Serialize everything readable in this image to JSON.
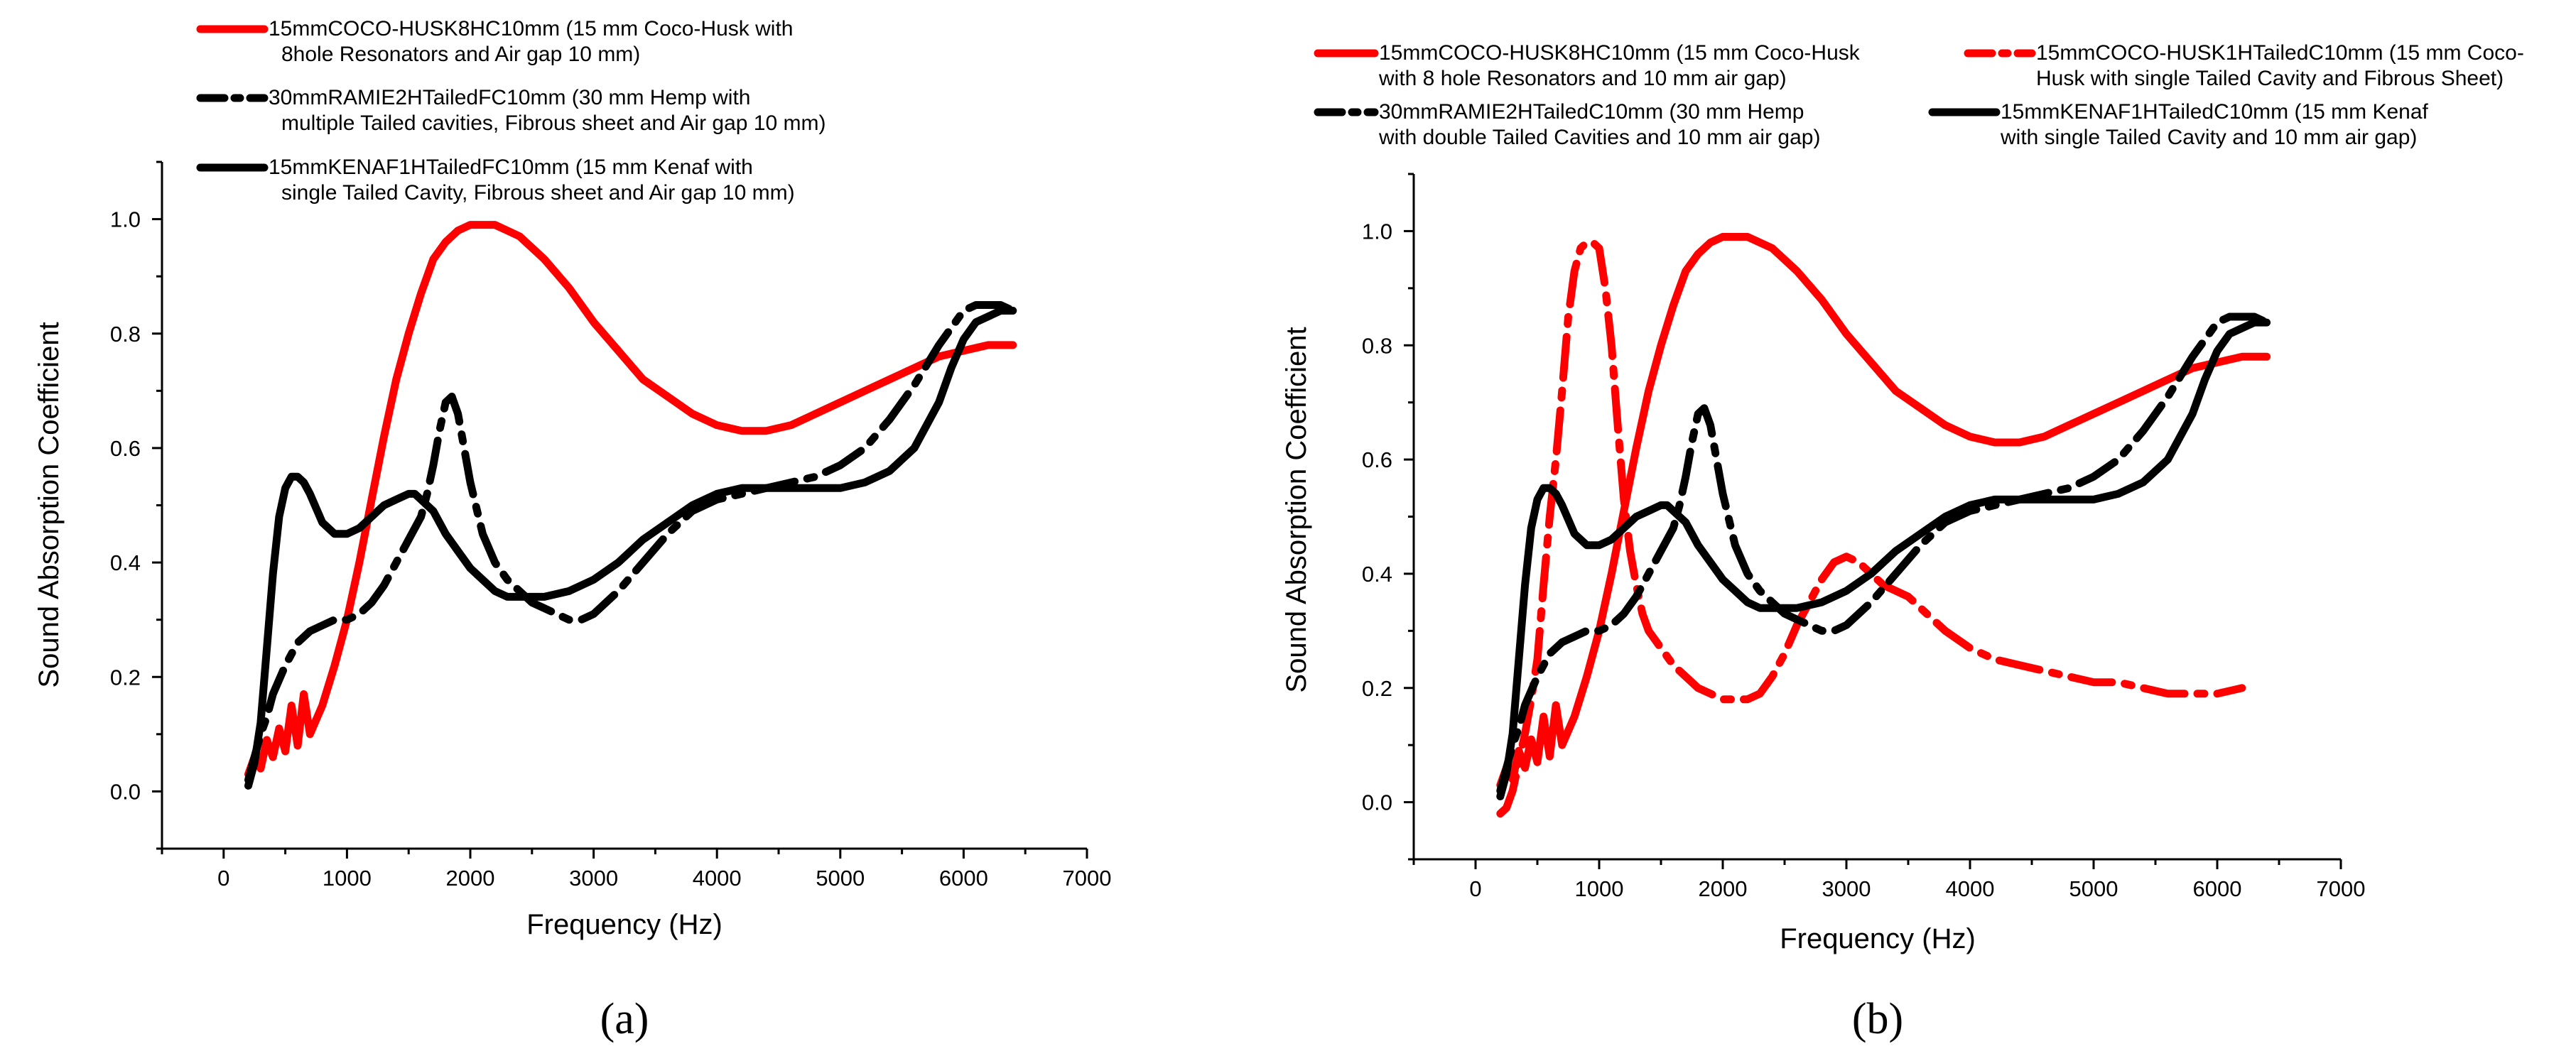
{
  "chart_data": [
    {
      "type": "line",
      "panel_label": "(a)",
      "xlabel": "Frequency (Hz)",
      "ylabel": "Sound Absorption Coefficient",
      "xlim": [
        -500,
        7000
      ],
      "ylim": [
        -0.1,
        1.1
      ],
      "xticks": [
        "0",
        "1000",
        "2000",
        "3000",
        "4000",
        "5000",
        "6000",
        "7000"
      ],
      "yticks": [
        "0.0",
        "0.2",
        "0.4",
        "0.6",
        "0.8",
        "1.0"
      ],
      "series": [
        {
          "name": "15mmCOCO-HUSK8HC10mm",
          "legend": [
            "15mmCOCO-HUSK8HC10mm (15 mm Coco-Husk with",
            "8hole Resonators and Air gap 10 mm)"
          ],
          "color": "#ff0000",
          "dash": "solid",
          "x": [
            200,
            250,
            300,
            350,
            400,
            450,
            500,
            550,
            600,
            650,
            700,
            800,
            900,
            1000,
            1100,
            1200,
            1300,
            1400,
            1500,
            1600,
            1700,
            1800,
            1900,
            2000,
            2100,
            2200,
            2300,
            2400,
            2600,
            2800,
            3000,
            3200,
            3400,
            3600,
            3800,
            4000,
            4200,
            4400,
            4600,
            4800,
            5000,
            5200,
            5400,
            5600,
            5800,
            6000,
            6200,
            6400
          ],
          "y": [
            0.03,
            0.06,
            0.04,
            0.09,
            0.06,
            0.11,
            0.07,
            0.15,
            0.08,
            0.17,
            0.1,
            0.15,
            0.22,
            0.3,
            0.4,
            0.51,
            0.62,
            0.72,
            0.8,
            0.87,
            0.93,
            0.96,
            0.98,
            0.99,
            0.99,
            0.99,
            0.98,
            0.97,
            0.93,
            0.88,
            0.82,
            0.77,
            0.72,
            0.69,
            0.66,
            0.64,
            0.63,
            0.63,
            0.64,
            0.66,
            0.68,
            0.7,
            0.72,
            0.74,
            0.76,
            0.77,
            0.78,
            0.78
          ]
        },
        {
          "name": "30mmRAMIE2HTailedFC10mm",
          "legend": [
            "30mmRAMIE2HTailedFC10mm (30 mm Hemp with",
            "multiple Tailed cavities, Fibrous sheet and Air gap 10 mm)"
          ],
          "color": "#000000",
          "dash": "dashdot",
          "x": [
            200,
            250,
            300,
            350,
            400,
            500,
            600,
            700,
            800,
            900,
            1000,
            1100,
            1200,
            1300,
            1400,
            1500,
            1600,
            1650,
            1700,
            1750,
            1800,
            1850,
            1900,
            1950,
            2000,
            2100,
            2200,
            2300,
            2400,
            2500,
            2600,
            2700,
            2800,
            2900,
            3000,
            3200,
            3400,
            3600,
            3800,
            4000,
            4200,
            4400,
            4600,
            4800,
            5000,
            5200,
            5400,
            5600,
            5800,
            5900,
            6000,
            6100,
            6200,
            6300,
            6400
          ],
          "y": [
            0.02,
            0.06,
            0.1,
            0.13,
            0.17,
            0.22,
            0.26,
            0.28,
            0.29,
            0.3,
            0.3,
            0.31,
            0.33,
            0.36,
            0.4,
            0.44,
            0.48,
            0.52,
            0.57,
            0.63,
            0.68,
            0.69,
            0.66,
            0.6,
            0.54,
            0.45,
            0.4,
            0.37,
            0.35,
            0.33,
            0.32,
            0.31,
            0.3,
            0.3,
            0.31,
            0.35,
            0.4,
            0.45,
            0.49,
            0.51,
            0.52,
            0.53,
            0.54,
            0.55,
            0.57,
            0.6,
            0.65,
            0.71,
            0.78,
            0.81,
            0.84,
            0.85,
            0.85,
            0.85,
            0.84
          ]
        },
        {
          "name": "15mmKENAF1HTailedFC10mm",
          "legend": [
            "15mmKENAF1HTailedFC10mm (15 mm Kenaf with",
            "single Tailed Cavity, Fibrous sheet and Air gap 10 mm)"
          ],
          "color": "#000000",
          "dash": "solid",
          "x": [
            200,
            250,
            300,
            350,
            400,
            450,
            500,
            550,
            600,
            650,
            700,
            800,
            900,
            1000,
            1100,
            1200,
            1300,
            1400,
            1500,
            1550,
            1600,
            1700,
            1800,
            1900,
            2000,
            2100,
            2200,
            2300,
            2400,
            2500,
            2600,
            2800,
            3000,
            3200,
            3400,
            3600,
            3800,
            4000,
            4200,
            4400,
            4600,
            4800,
            5000,
            5200,
            5400,
            5600,
            5800,
            5900,
            6000,
            6100,
            6200,
            6300,
            6400
          ],
          "y": [
            0.01,
            0.05,
            0.12,
            0.25,
            0.38,
            0.48,
            0.53,
            0.55,
            0.55,
            0.54,
            0.52,
            0.47,
            0.45,
            0.45,
            0.46,
            0.48,
            0.5,
            0.51,
            0.52,
            0.52,
            0.51,
            0.49,
            0.45,
            0.42,
            0.39,
            0.37,
            0.35,
            0.34,
            0.34,
            0.34,
            0.34,
            0.35,
            0.37,
            0.4,
            0.44,
            0.47,
            0.5,
            0.52,
            0.53,
            0.53,
            0.53,
            0.53,
            0.53,
            0.54,
            0.56,
            0.6,
            0.68,
            0.74,
            0.79,
            0.82,
            0.83,
            0.84,
            0.84
          ]
        }
      ]
    },
    {
      "type": "line",
      "panel_label": "(b)",
      "xlabel": "Frequency (Hz)",
      "ylabel": "Sound Absorption Coefficient",
      "xlim": [
        -500,
        7000
      ],
      "ylim": [
        -0.1,
        1.1
      ],
      "xticks": [
        "0",
        "1000",
        "2000",
        "3000",
        "4000",
        "5000",
        "6000",
        "7000"
      ],
      "yticks": [
        "0.0",
        "0.2",
        "0.4",
        "0.6",
        "0.8",
        "1.0"
      ],
      "series": [
        {
          "name": "15mmCOCO-HUSK8HC10mm",
          "legend": [
            "15mmCOCO-HUSK8HC10mm (15 mm Coco-Husk",
            "with 8 hole Resonators and 10 mm air gap)"
          ],
          "color": "#ff0000",
          "dash": "solid",
          "x": [
            200,
            250,
            300,
            350,
            400,
            450,
            500,
            550,
            600,
            650,
            700,
            800,
            900,
            1000,
            1100,
            1200,
            1300,
            1400,
            1500,
            1600,
            1700,
            1800,
            1900,
            2000,
            2100,
            2200,
            2300,
            2400,
            2600,
            2800,
            3000,
            3200,
            3400,
            3600,
            3800,
            4000,
            4200,
            4400,
            4600,
            4800,
            5000,
            5200,
            5400,
            5600,
            5800,
            6000,
            6200,
            6400
          ],
          "y": [
            0.03,
            0.06,
            0.04,
            0.09,
            0.06,
            0.11,
            0.07,
            0.15,
            0.08,
            0.17,
            0.1,
            0.15,
            0.22,
            0.3,
            0.4,
            0.51,
            0.62,
            0.72,
            0.8,
            0.87,
            0.93,
            0.96,
            0.98,
            0.99,
            0.99,
            0.99,
            0.98,
            0.97,
            0.93,
            0.88,
            0.82,
            0.77,
            0.72,
            0.69,
            0.66,
            0.64,
            0.63,
            0.63,
            0.64,
            0.66,
            0.68,
            0.7,
            0.72,
            0.74,
            0.76,
            0.77,
            0.78,
            0.78
          ]
        },
        {
          "name": "15mmCOCO-HUSK1HTailedC10mm",
          "legend": [
            "15mmCOCO-HUSK1HTailedC10mm (15 mm Coco-",
            "Husk with single Tailed Cavity and Fibrous Sheet)"
          ],
          "color": "#ff0000",
          "dash": "dashdot",
          "x": [
            200,
            250,
            300,
            350,
            400,
            450,
            500,
            550,
            600,
            650,
            700,
            750,
            800,
            850,
            900,
            950,
            1000,
            1050,
            1100,
            1150,
            1200,
            1250,
            1300,
            1350,
            1400,
            1500,
            1600,
            1700,
            1800,
            1900,
            2000,
            2100,
            2200,
            2300,
            2400,
            2500,
            2600,
            2700,
            2800,
            2900,
            3000,
            3100,
            3200,
            3300,
            3400,
            3500,
            3600,
            3800,
            4000,
            4200,
            4400,
            4600,
            4800,
            5000,
            5200,
            5400,
            5600,
            5800,
            6000,
            6200
          ],
          "y": [
            -0.02,
            -0.01,
            0.02,
            0.07,
            0.12,
            0.18,
            0.25,
            0.38,
            0.5,
            0.6,
            0.72,
            0.85,
            0.93,
            0.97,
            0.98,
            0.98,
            0.97,
            0.9,
            0.8,
            0.66,
            0.53,
            0.44,
            0.38,
            0.33,
            0.3,
            0.27,
            0.24,
            0.22,
            0.2,
            0.19,
            0.18,
            0.18,
            0.18,
            0.19,
            0.22,
            0.26,
            0.31,
            0.35,
            0.39,
            0.42,
            0.43,
            0.42,
            0.4,
            0.38,
            0.37,
            0.36,
            0.34,
            0.3,
            0.27,
            0.25,
            0.24,
            0.23,
            0.22,
            0.21,
            0.21,
            0.2,
            0.19,
            0.19,
            0.19,
            0.2
          ]
        },
        {
          "name": "30mmRAMIE2HTailedC10mm",
          "legend": [
            "30mmRAMIE2HTailedC10mm (30 mm Hemp",
            "with double Tailed Cavities and 10 mm air gap)"
          ],
          "color": "#000000",
          "dash": "dashdot",
          "x": [
            200,
            250,
            300,
            350,
            400,
            500,
            600,
            700,
            800,
            900,
            1000,
            1100,
            1200,
            1300,
            1400,
            1500,
            1600,
            1650,
            1700,
            1750,
            1800,
            1850,
            1900,
            1950,
            2000,
            2100,
            2200,
            2300,
            2400,
            2500,
            2600,
            2700,
            2800,
            2900,
            3000,
            3200,
            3400,
            3600,
            3800,
            4000,
            4200,
            4400,
            4600,
            4800,
            5000,
            5200,
            5400,
            5600,
            5800,
            5900,
            6000,
            6100,
            6200,
            6300,
            6400
          ],
          "y": [
            0.02,
            0.06,
            0.1,
            0.13,
            0.17,
            0.22,
            0.26,
            0.28,
            0.29,
            0.3,
            0.3,
            0.31,
            0.33,
            0.36,
            0.4,
            0.44,
            0.48,
            0.52,
            0.57,
            0.63,
            0.68,
            0.69,
            0.66,
            0.6,
            0.54,
            0.45,
            0.4,
            0.37,
            0.35,
            0.33,
            0.32,
            0.31,
            0.3,
            0.3,
            0.31,
            0.35,
            0.4,
            0.45,
            0.49,
            0.51,
            0.52,
            0.53,
            0.54,
            0.55,
            0.57,
            0.6,
            0.65,
            0.71,
            0.78,
            0.81,
            0.84,
            0.85,
            0.85,
            0.85,
            0.84
          ]
        },
        {
          "name": "15mmKENAF1HTailedC10mm",
          "legend": [
            "15mmKENAF1HTailedC10mm (15 mm Kenaf",
            "with single Tailed Cavity and 10 mm air gap)"
          ],
          "color": "#000000",
          "dash": "solid",
          "x": [
            200,
            250,
            300,
            350,
            400,
            450,
            500,
            550,
            600,
            650,
            700,
            800,
            900,
            1000,
            1100,
            1200,
            1300,
            1400,
            1500,
            1550,
            1600,
            1700,
            1800,
            1900,
            2000,
            2100,
            2200,
            2300,
            2400,
            2500,
            2600,
            2800,
            3000,
            3200,
            3400,
            3600,
            3800,
            4000,
            4200,
            4400,
            4600,
            4800,
            5000,
            5200,
            5400,
            5600,
            5800,
            5900,
            6000,
            6100,
            6200,
            6300,
            6400
          ],
          "y": [
            0.01,
            0.05,
            0.12,
            0.25,
            0.38,
            0.48,
            0.53,
            0.55,
            0.55,
            0.54,
            0.52,
            0.47,
            0.45,
            0.45,
            0.46,
            0.48,
            0.5,
            0.51,
            0.52,
            0.52,
            0.51,
            0.49,
            0.45,
            0.42,
            0.39,
            0.37,
            0.35,
            0.34,
            0.34,
            0.34,
            0.34,
            0.35,
            0.37,
            0.4,
            0.44,
            0.47,
            0.5,
            0.52,
            0.53,
            0.53,
            0.53,
            0.53,
            0.53,
            0.54,
            0.56,
            0.6,
            0.68,
            0.74,
            0.79,
            0.82,
            0.83,
            0.84,
            0.84
          ]
        }
      ]
    }
  ]
}
